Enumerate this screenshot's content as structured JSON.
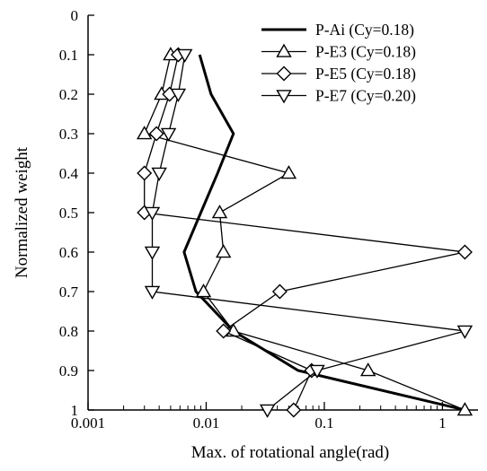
{
  "chart_data": {
    "type": "line",
    "title": "",
    "xlabel": "Max. of rotational angle(rad)",
    "ylabel": "Normalized weight",
    "x_scale": "log",
    "xlim": [
      0.001,
      2
    ],
    "ylim": [
      1,
      0
    ],
    "y_inverted": true,
    "grid": false,
    "legend_position": "top-right",
    "x_ticks": [
      0.001,
      0.01,
      0.1,
      1
    ],
    "x_tick_labels": [
      "0.001",
      "0.01",
      "0.1",
      "1"
    ],
    "y_ticks": [
      0,
      0.1,
      0.2,
      0.3,
      0.4,
      0.5,
      0.6,
      0.7,
      0.8,
      0.9,
      1
    ],
    "y_tick_labels": [
      "0",
      "0.1",
      "0.2",
      "0.3",
      "0.4",
      "0.5",
      "0.6",
      "0.7",
      "0.8",
      "0.9",
      "1"
    ],
    "series": [
      {
        "name": "P-Ai (Cy=0.18)",
        "marker": "none",
        "line_width": 3,
        "points": [
          [
            0.0088,
            0.1
          ],
          [
            0.011,
            0.2
          ],
          [
            0.017,
            0.3
          ],
          [
            0.0125,
            0.4
          ],
          [
            0.009,
            0.5
          ],
          [
            0.0065,
            0.6
          ],
          [
            0.0082,
            0.7
          ],
          [
            0.017,
            0.8
          ],
          [
            0.06,
            0.9
          ],
          [
            1.55,
            1.0
          ]
        ]
      },
      {
        "name": "P-E3 (Cy=0.18)",
        "marker": "triangle-up",
        "line_width": 1.3,
        "points": [
          [
            0.005,
            0.1
          ],
          [
            0.0042,
            0.2
          ],
          [
            0.003,
            0.3
          ],
          [
            0.05,
            0.4
          ],
          [
            0.013,
            0.5
          ],
          [
            0.014,
            0.6
          ],
          [
            0.0095,
            0.7
          ],
          [
            0.017,
            0.8
          ],
          [
            0.235,
            0.9
          ],
          [
            1.55,
            1.0
          ]
        ]
      },
      {
        "name": "P-E5 (Cy=0.18)",
        "marker": "diamond",
        "line_width": 1.3,
        "points": [
          [
            0.0058,
            0.1
          ],
          [
            0.0049,
            0.2
          ],
          [
            0.0038,
            0.3
          ],
          [
            0.003,
            0.4
          ],
          [
            0.003,
            0.5
          ],
          [
            1.55,
            0.6
          ],
          [
            0.042,
            0.7
          ],
          [
            0.014,
            0.8
          ],
          [
            0.078,
            0.9
          ],
          [
            0.055,
            1.0
          ]
        ]
      },
      {
        "name": "P-E7 (Cy=0.20)",
        "marker": "triangle-down",
        "line_width": 1.3,
        "points": [
          [
            0.0066,
            0.1
          ],
          [
            0.0058,
            0.2
          ],
          [
            0.0048,
            0.3
          ],
          [
            0.004,
            0.4
          ],
          [
            0.0035,
            0.5
          ],
          [
            0.0035,
            0.6
          ],
          [
            0.0035,
            0.7
          ],
          [
            1.55,
            0.8
          ],
          [
            0.087,
            0.9
          ],
          [
            0.033,
            1.0
          ]
        ]
      }
    ]
  }
}
